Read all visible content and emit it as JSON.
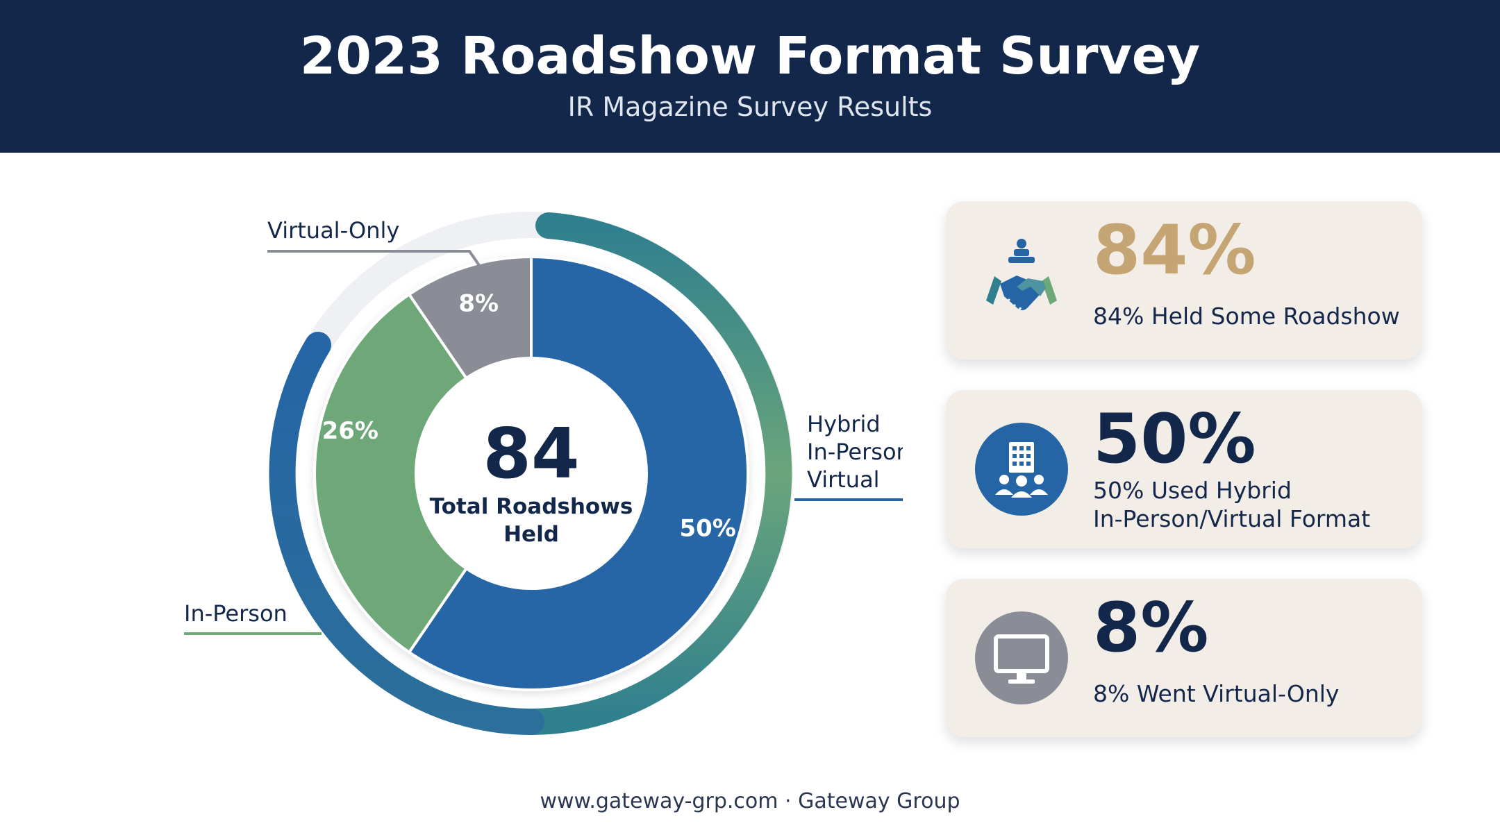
{
  "header": {
    "title": "2023 Roadshow Format Survey",
    "subtitle": "IR Magazine Survey Results"
  },
  "center": {
    "value": "84",
    "label_line1": "Total Roadshows",
    "label_line2": "Held"
  },
  "callouts": {
    "virtual": "Virtual-Only",
    "hybrid_line1": "Hybrid",
    "hybrid_line2": "In-Person/",
    "hybrid_line3": "Virtual",
    "in_person": "In-Person"
  },
  "chart_data": {
    "type": "pie",
    "variant": "donut",
    "categories": [
      "Hybrid In-Person/Virtual",
      "In-Person",
      "Virtual-Only"
    ],
    "values": [
      50,
      26,
      8
    ],
    "labels": [
      "50%",
      "26%",
      "8%"
    ],
    "unit": "%",
    "colors": [
      "#2565a6",
      "#6ea778",
      "#8a8d96"
    ],
    "center_total": 84
  },
  "cards": [
    {
      "big": "84%",
      "desc_line1": "84% Held Some Roadshow",
      "desc_line2": "",
      "big_color": "#c6a574",
      "icon": "handshake-icon",
      "icon_color": "#2565a6"
    },
    {
      "big": "50%",
      "desc_line1": "50% Used Hybrid",
      "desc_line2": "In-Person/Virtual Format",
      "big_color": "#13274a",
      "icon": "office-building-people-icon",
      "icon_color": "#2565a6"
    },
    {
      "big": "8%",
      "desc_line1": "8% Went Virtual-Only",
      "desc_line2": "",
      "big_color": "#13274a",
      "icon": "monitor-icon",
      "icon_color": "#8a8d96"
    }
  ],
  "footer": {
    "text": "www.gateway-grp.com · Gateway Group"
  }
}
